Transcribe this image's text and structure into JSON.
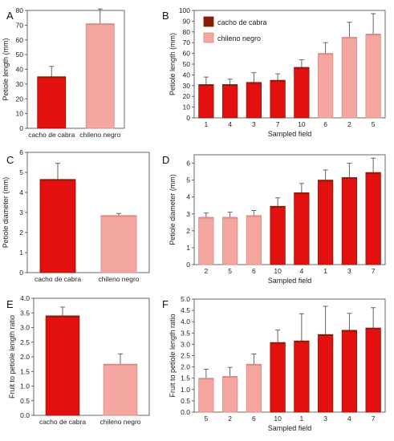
{
  "colors": {
    "cacho": "#e31010",
    "cacho_dark": "#8b1a06",
    "chileno": "#f4a6a1",
    "chileno_dark": "#d98b84",
    "errorbar": "#555555",
    "axis": "#444444"
  },
  "chart_data": [
    {
      "panel": "A",
      "type": "bar",
      "ylabel": "Petiole length (mm)",
      "xlabel": "",
      "ylim": [
        0,
        80
      ],
      "ytick_step": 10,
      "grid": false,
      "categories": [
        "cacho de cabra",
        "chileno negro"
      ],
      "values": [
        35,
        71
      ],
      "errors": [
        7,
        10
      ],
      "groups": [
        "cacho",
        "chileno"
      ]
    },
    {
      "panel": "B",
      "type": "bar",
      "ylabel": "Petiole length (mm)",
      "xlabel": "Sampled field",
      "ylim": [
        0,
        100
      ],
      "ytick_step": 10,
      "grid": false,
      "categories": [
        "1",
        "4",
        "3",
        "7",
        "10",
        "6",
        "2",
        "5"
      ],
      "values": [
        31,
        31,
        33,
        35,
        47,
        60,
        75,
        78
      ],
      "errors": [
        7,
        5,
        9,
        6,
        7,
        10,
        14,
        19
      ],
      "groups": [
        "cacho",
        "cacho",
        "cacho",
        "cacho",
        "cacho",
        "chileno",
        "chileno",
        "chileno"
      ],
      "legend": {
        "placement": "top-left",
        "entries": [
          {
            "label": "cacho de cabra",
            "group": "cacho"
          },
          {
            "label": "chileno negro",
            "group": "chileno"
          }
        ]
      }
    },
    {
      "panel": "C",
      "type": "bar",
      "ylabel": "Petiole diameter (mm)",
      "xlabel": "",
      "ylim": [
        0,
        6
      ],
      "ytick_step": 1,
      "grid": false,
      "categories": [
        "cacho de cabra",
        "chileno negro"
      ],
      "values": [
        4.65,
        2.85
      ],
      "errors": [
        0.8,
        0.1
      ],
      "groups": [
        "cacho",
        "chileno"
      ]
    },
    {
      "panel": "D",
      "type": "bar",
      "ylabel": "Petiole diameter (mm)",
      "xlabel": "Sampled field",
      "ylim": [
        0,
        6.5
      ],
      "ytick_step": 1,
      "grid": false,
      "categories": [
        "2",
        "5",
        "6",
        "10",
        "4",
        "1",
        "3",
        "7"
      ],
      "values": [
        2.8,
        2.8,
        2.9,
        3.45,
        4.25,
        5.0,
        5.15,
        5.45
      ],
      "errors": [
        0.25,
        0.3,
        0.3,
        0.5,
        0.55,
        0.6,
        0.85,
        0.85
      ],
      "groups": [
        "chileno",
        "chileno",
        "chileno",
        "cacho",
        "cacho",
        "cacho",
        "cacho",
        "cacho"
      ]
    },
    {
      "panel": "E",
      "type": "bar",
      "ylabel": "Fruit to petiole length ratio",
      "xlabel": "",
      "ylim": [
        0,
        4.0
      ],
      "ytick_step": 0.5,
      "decimals": 1,
      "grid": false,
      "categories": [
        "cacho de cabra",
        "chileno negro"
      ],
      "values": [
        3.4,
        1.75
      ],
      "errors": [
        0.3,
        0.35
      ],
      "groups": [
        "cacho",
        "chileno"
      ]
    },
    {
      "panel": "F",
      "type": "bar",
      "ylabel": "Fruit to petiole length ratio",
      "xlabel": "Sampled field",
      "ylim": [
        0,
        5.0
      ],
      "ytick_step": 0.5,
      "decimals": 1,
      "grid": false,
      "categories": [
        "5",
        "2",
        "6",
        "10",
        "1",
        "3",
        "4",
        "7"
      ],
      "values": [
        1.5,
        1.58,
        2.12,
        3.08,
        3.15,
        3.43,
        3.62,
        3.72
      ],
      "errors": [
        0.4,
        0.4,
        0.45,
        0.55,
        1.2,
        1.25,
        0.75,
        0.9
      ],
      "groups": [
        "chileno",
        "chileno",
        "chileno",
        "cacho",
        "cacho",
        "cacho",
        "cacho",
        "cacho"
      ]
    }
  ]
}
